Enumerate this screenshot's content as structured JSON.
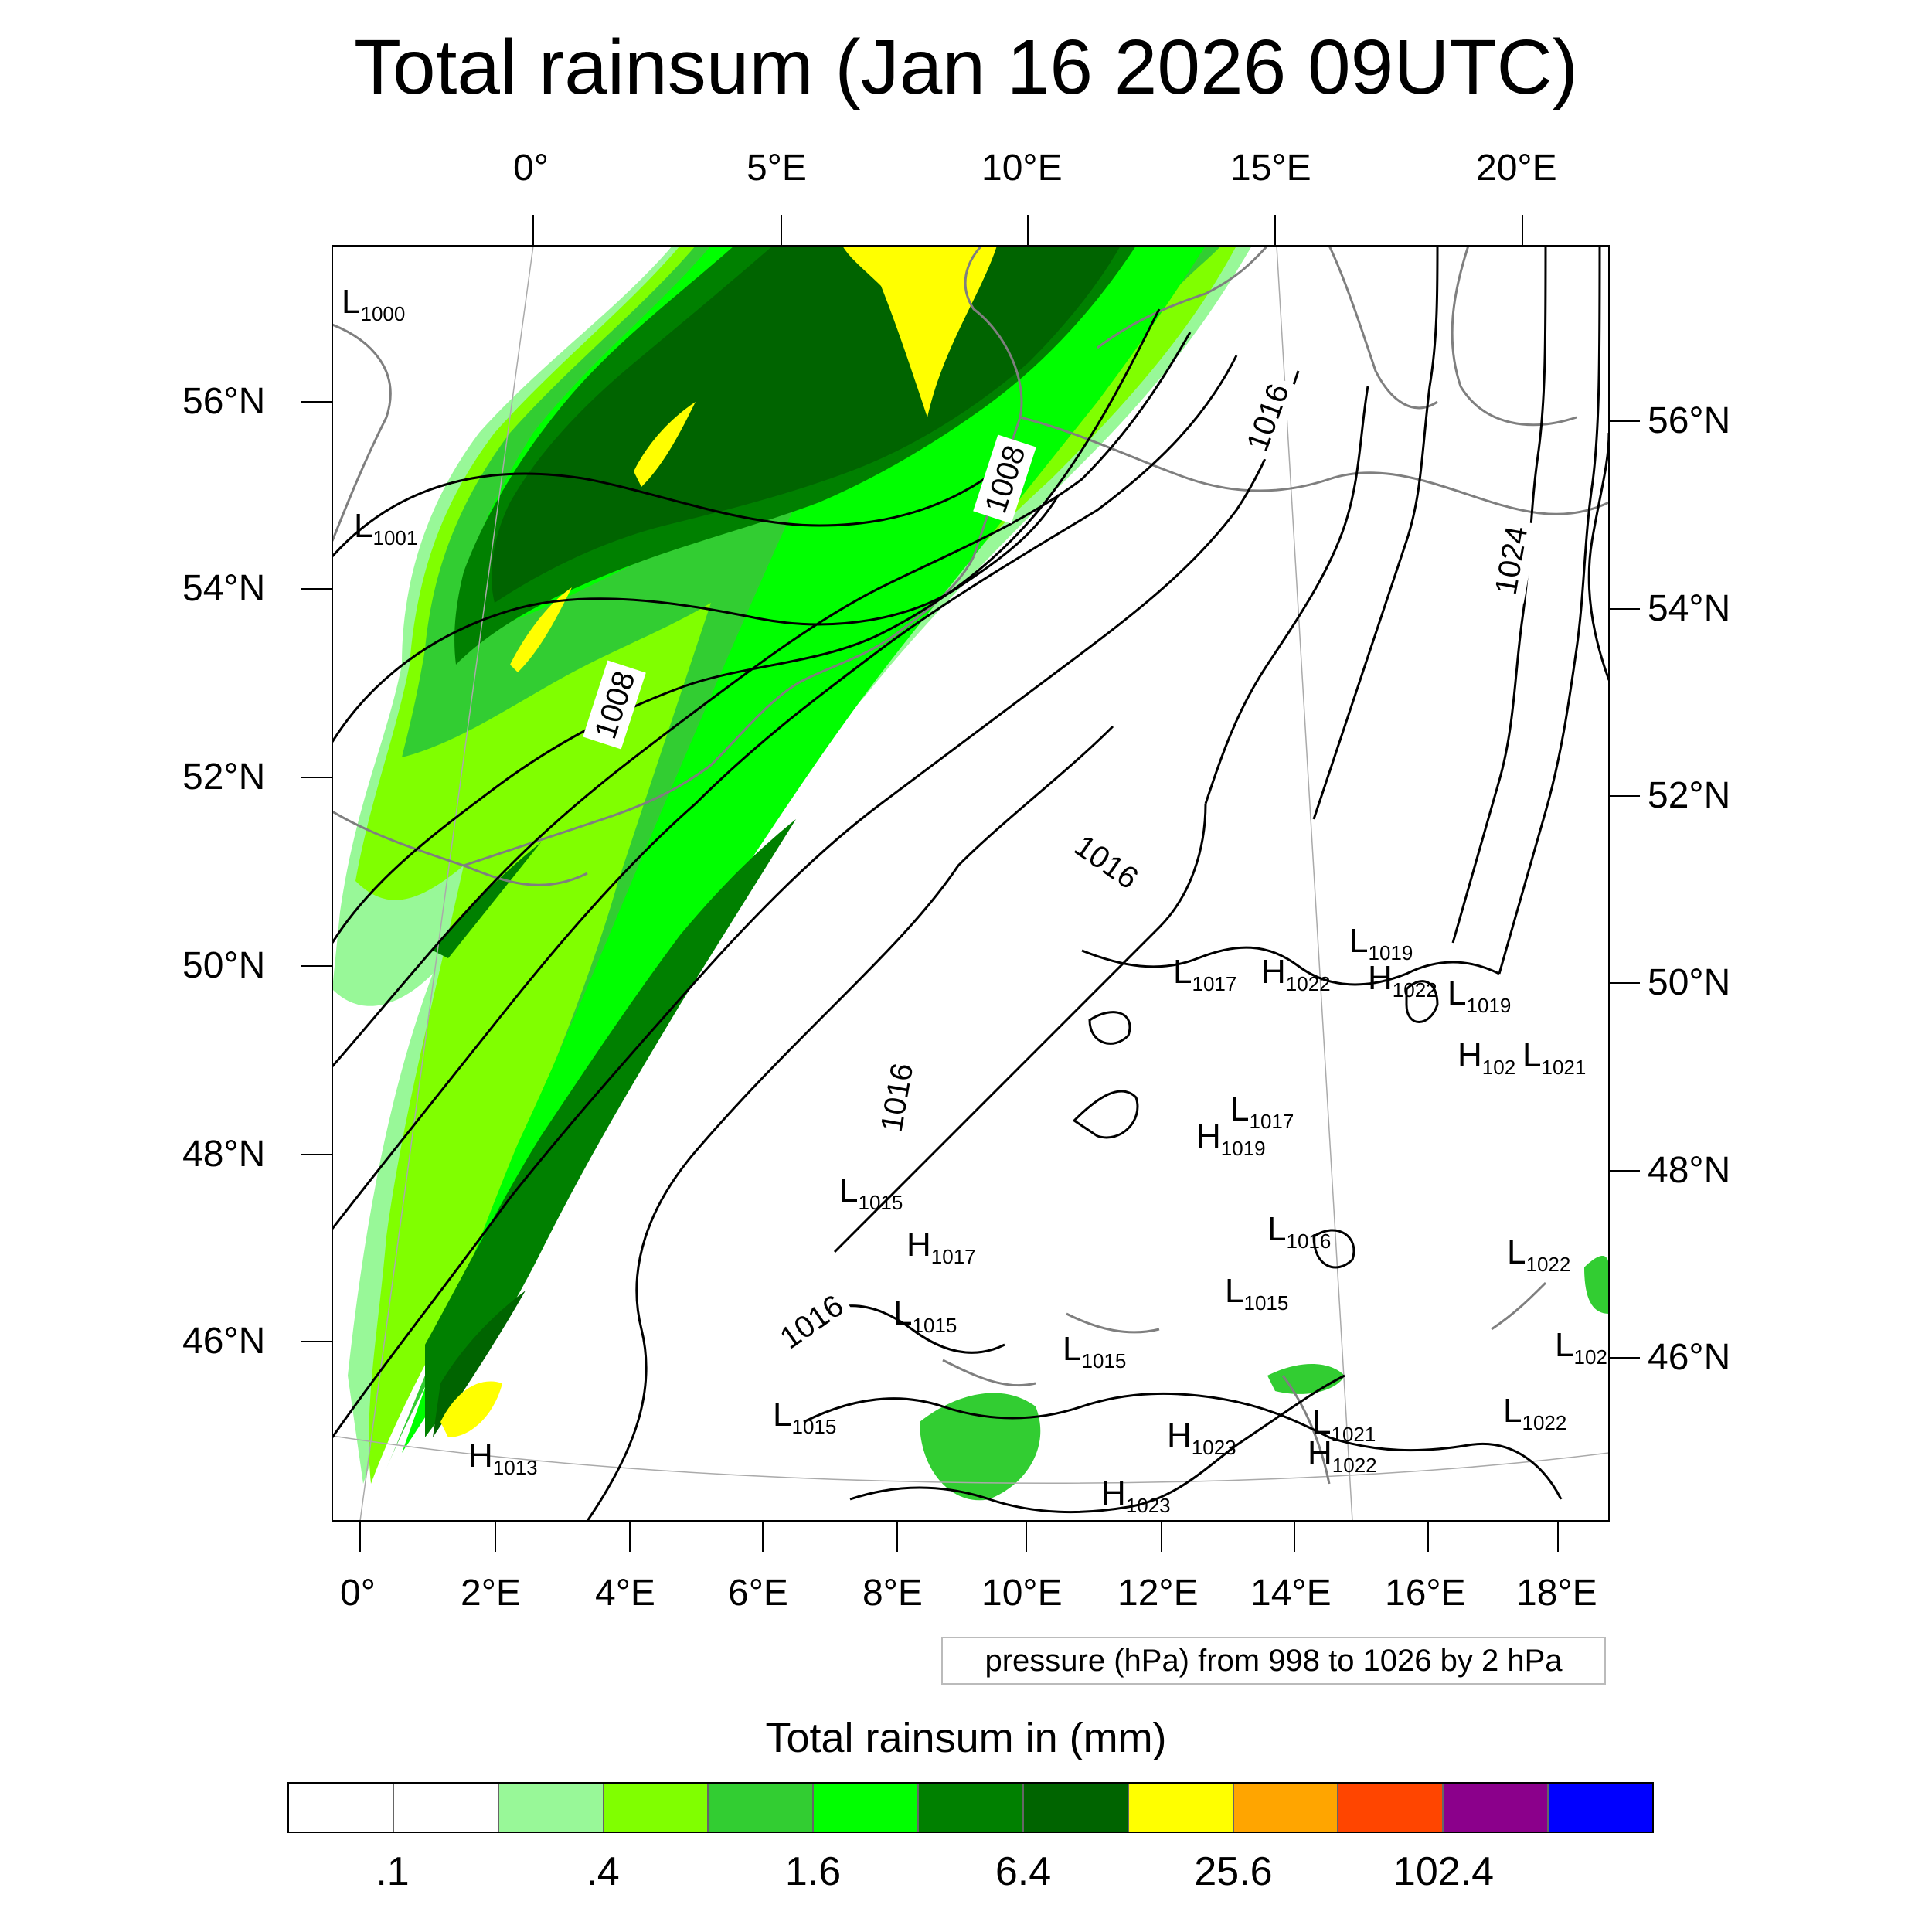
{
  "title": "Total rainsum (Jan 16 2026 09UTC)",
  "axes": {
    "top_lon": [
      "0°",
      "5°E",
      "10°E",
      "15°E",
      "20°E"
    ],
    "bottom_lon": [
      "0°",
      "2°E",
      "4°E",
      "6°E",
      "8°E",
      "10°E",
      "12°E",
      "14°E",
      "16°E",
      "18°E"
    ],
    "left_lat": [
      "56°N",
      "54°N",
      "52°N",
      "50°N",
      "48°N",
      "46°N"
    ],
    "right_lat": [
      "56°N",
      "54°N",
      "52°N",
      "50°N",
      "48°N",
      "46°N"
    ]
  },
  "isobar_labels": [
    "1008",
    "1008",
    "1016",
    "1016",
    "1016",
    "1016",
    "1024"
  ],
  "pressure_centers": [
    {
      "type": "L",
      "value": "1000"
    },
    {
      "type": "L",
      "value": "1001"
    },
    {
      "type": "H",
      "value": "1013"
    },
    {
      "type": "L",
      "value": "1015"
    },
    {
      "type": "H",
      "value": "1017"
    },
    {
      "type": "L",
      "value": "1015"
    },
    {
      "type": "L",
      "value": "1015"
    },
    {
      "type": "L",
      "value": "1015"
    },
    {
      "type": "H",
      "value": "1023"
    },
    {
      "type": "H",
      "value": "1023"
    },
    {
      "type": "L",
      "value": "1017"
    },
    {
      "type": "H",
      "value": "1022"
    },
    {
      "type": "H",
      "value": "1022"
    },
    {
      "type": "L",
      "value": "1019"
    },
    {
      "type": "L",
      "value": "1019"
    },
    {
      "type": "H",
      "value": "102"
    },
    {
      "type": "L",
      "value": "1021"
    },
    {
      "type": "L",
      "value": "1017"
    },
    {
      "type": "H",
      "value": "1019"
    },
    {
      "type": "L",
      "value": "1016"
    },
    {
      "type": "L",
      "value": "1015"
    },
    {
      "type": "L",
      "value": "1021"
    },
    {
      "type": "H",
      "value": "1022"
    },
    {
      "type": "L",
      "value": "1022"
    },
    {
      "type": "L",
      "value": "102"
    },
    {
      "type": "L",
      "value": "1022"
    }
  ],
  "info_box": "pressure (hPa) from 998 to 1026 by 2 hPa",
  "colorbar": {
    "title": "Total rainsum in (mm)",
    "colors": [
      "#ffffff",
      "#ffffff",
      "#98f898",
      "#80ff00",
      "#32cd32",
      "#00ff00",
      "#008000",
      "#006400",
      "#ffff00",
      "#ffa500",
      "#ff4500",
      "#8b008b",
      "#0000ff"
    ],
    "labels": [
      ".1",
      ".4",
      "1.6",
      "6.4",
      "25.6",
      "102.4"
    ]
  }
}
